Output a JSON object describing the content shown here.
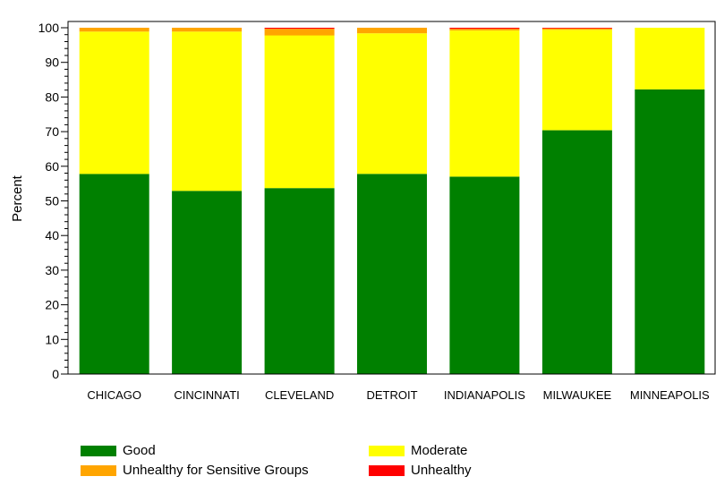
{
  "chart_data": {
    "type": "bar",
    "stacked": true,
    "title": "",
    "xlabel": "",
    "ylabel": "Percent",
    "ylim": [
      0,
      100
    ],
    "yticks": [
      0,
      10,
      20,
      30,
      40,
      50,
      60,
      70,
      80,
      90,
      100
    ],
    "grid": false,
    "legend_position": "bottom",
    "categories": [
      "CHICAGO",
      "CINCINNATI",
      "CLEVELAND",
      "DETROIT",
      "INDIANAPOLIS",
      "MILWAUKEE",
      "MINNEAPOLIS"
    ],
    "series": [
      {
        "name": "Good",
        "color": "#008000",
        "values": [
          57.8,
          52.9,
          53.7,
          57.8,
          57.0,
          70.4,
          82.2
        ]
      },
      {
        "name": "Moderate",
        "color": "#ffff00",
        "values": [
          41.1,
          46.0,
          44.1,
          40.6,
          42.2,
          29.0,
          17.8
        ]
      },
      {
        "name": "Unhealthy for Sensitive Groups",
        "color": "#ffa500",
        "values": [
          1.1,
          1.1,
          1.9,
          1.6,
          0.5,
          0.4,
          0.0
        ]
      },
      {
        "name": "Unhealthy",
        "color": "#ff0000",
        "values": [
          0.0,
          0.0,
          0.3,
          0.0,
          0.3,
          0.2,
          0.0
        ]
      }
    ]
  }
}
